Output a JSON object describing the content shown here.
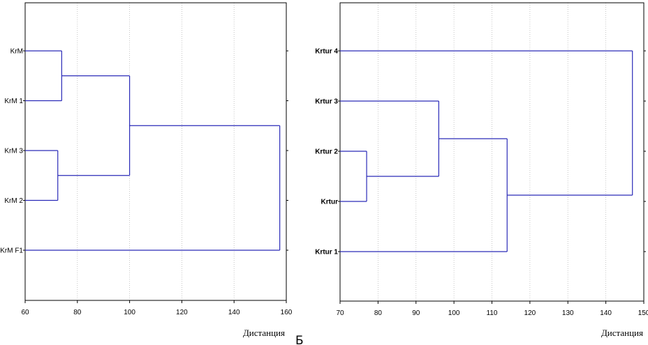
{
  "chart_data": [
    {
      "type": "dendrogram",
      "xlabel": "Дистанция",
      "xlim": [
        60,
        160
      ],
      "xticks": [
        60,
        80,
        100,
        120,
        140,
        160
      ],
      "grid": "vertical dotted",
      "orientation": "horizontal",
      "leaf_style": "normal",
      "leaves": [
        "KrM",
        "KrM 1",
        "KrM 3",
        "KrM 2",
        "KrM F1"
      ],
      "merges": [
        {
          "a": "KrM",
          "b": "KrM 1",
          "distance": 74
        },
        {
          "a": "KrM 3",
          "b": "KrM 2",
          "distance": 72.5
        },
        {
          "a": 0,
          "b": 1,
          "distance": 100
        },
        {
          "a": 2,
          "b": "KrM F1",
          "distance": 157.5
        }
      ]
    },
    {
      "type": "dendrogram",
      "xlabel": "Дистанция",
      "xlim": [
        70,
        150
      ],
      "xticks": [
        70,
        80,
        90,
        100,
        110,
        120,
        130,
        140,
        150
      ],
      "grid": "vertical dotted",
      "orientation": "horizontal",
      "leaf_style": "bold",
      "leaves": [
        "Krtur 4",
        "Krtur 3",
        "Krtur 2",
        "Krtur",
        "Krtur 1"
      ],
      "merges": [
        {
          "a": "Krtur 2",
          "b": "Krtur",
          "distance": 77
        },
        {
          "a": "Krtur 3",
          "b": 0,
          "distance": 96
        },
        {
          "a": 1,
          "b": "Krtur 1",
          "distance": 114
        },
        {
          "a": "Krtur 4",
          "b": 2,
          "distance": 147
        }
      ]
    }
  ],
  "caption": "Б",
  "colors": {
    "tree": "#2a2ab8",
    "axis": "#000000",
    "grid": "#b8b8b8"
  }
}
